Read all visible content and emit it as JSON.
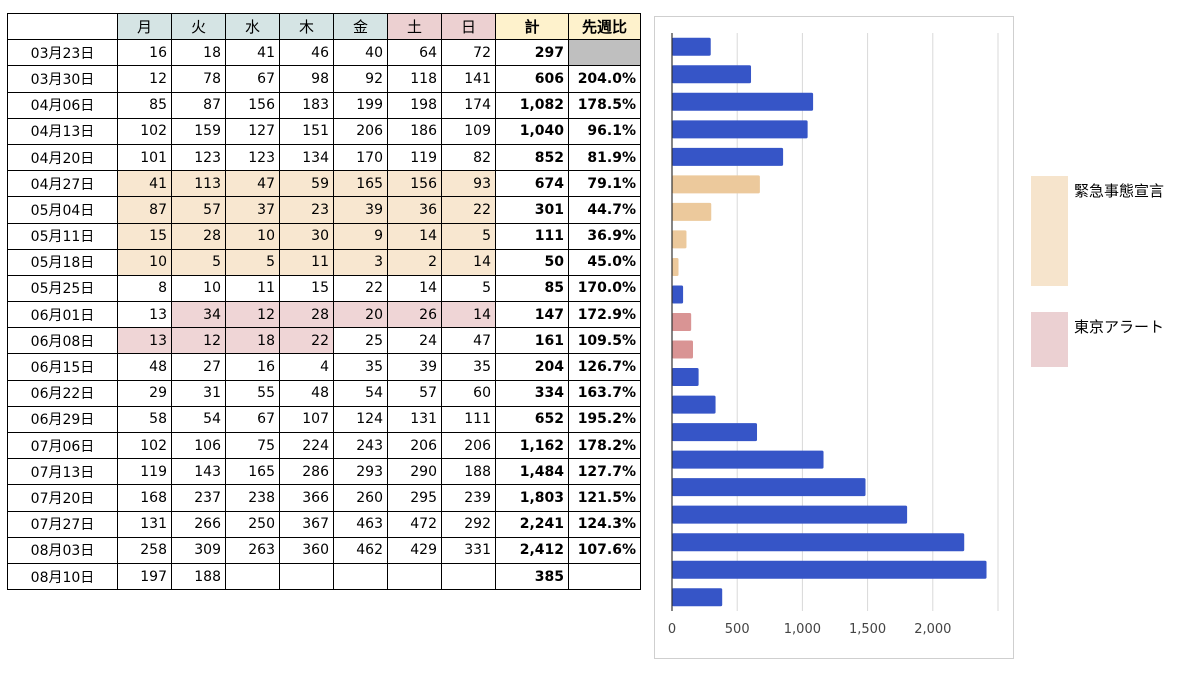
{
  "table": {
    "headers": {
      "date": "",
      "days": [
        "月",
        "火",
        "水",
        "木",
        "金",
        "土",
        "日"
      ],
      "total": "計",
      "ratio": "先週比"
    },
    "rows": [
      {
        "date": "03月23日",
        "days": [
          "16",
          "18",
          "41",
          "46",
          "40",
          "64",
          "72"
        ],
        "total": "297",
        "ratio": "",
        "highlight": [
          "",
          "",
          "",
          "",
          "",
          "",
          ""
        ],
        "ratio_na": true
      },
      {
        "date": "03月30日",
        "days": [
          "12",
          "78",
          "67",
          "98",
          "92",
          "118",
          "141"
        ],
        "total": "606",
        "ratio": "204.0%",
        "highlight": [
          "",
          "",
          "",
          "",
          "",
          "",
          ""
        ]
      },
      {
        "date": "04月06日",
        "days": [
          "85",
          "87",
          "156",
          "183",
          "199",
          "198",
          "174"
        ],
        "total": "1,082",
        "ratio": "178.5%",
        "highlight": [
          "",
          "",
          "",
          "",
          "",
          "",
          ""
        ]
      },
      {
        "date": "04月13日",
        "days": [
          "102",
          "159",
          "127",
          "151",
          "206",
          "186",
          "109"
        ],
        "total": "1,040",
        "ratio": "96.1%",
        "highlight": [
          "",
          "",
          "",
          "",
          "",
          "",
          ""
        ]
      },
      {
        "date": "04月20日",
        "days": [
          "101",
          "123",
          "123",
          "134",
          "170",
          "119",
          "82"
        ],
        "total": "852",
        "ratio": "81.9%",
        "highlight": [
          "",
          "",
          "",
          "",
          "",
          "",
          ""
        ]
      },
      {
        "date": "04月27日",
        "days": [
          "41",
          "113",
          "47",
          "59",
          "165",
          "156",
          "93"
        ],
        "total": "674",
        "ratio": "79.1%",
        "highlight": [
          "e",
          "e",
          "e",
          "e",
          "e",
          "e",
          "e"
        ]
      },
      {
        "date": "05月04日",
        "days": [
          "87",
          "57",
          "37",
          "23",
          "39",
          "36",
          "22"
        ],
        "total": "301",
        "ratio": "44.7%",
        "highlight": [
          "e",
          "e",
          "e",
          "e",
          "e",
          "e",
          "e"
        ]
      },
      {
        "date": "05月11日",
        "days": [
          "15",
          "28",
          "10",
          "30",
          "9",
          "14",
          "5"
        ],
        "total": "111",
        "ratio": "36.9%",
        "highlight": [
          "e",
          "e",
          "e",
          "e",
          "e",
          "e",
          "e"
        ]
      },
      {
        "date": "05月18日",
        "days": [
          "10",
          "5",
          "5",
          "11",
          "3",
          "2",
          "14"
        ],
        "total": "50",
        "ratio": "45.0%",
        "highlight": [
          "e",
          "e",
          "e",
          "e",
          "e",
          "e",
          "e"
        ]
      },
      {
        "date": "05月25日",
        "days": [
          "8",
          "10",
          "11",
          "15",
          "22",
          "14",
          "5"
        ],
        "total": "85",
        "ratio": "170.0%",
        "highlight": [
          "",
          "",
          "",
          "",
          "",
          "",
          ""
        ]
      },
      {
        "date": "06月01日",
        "days": [
          "13",
          "34",
          "12",
          "28",
          "20",
          "26",
          "14"
        ],
        "total": "147",
        "ratio": "172.9%",
        "highlight": [
          "",
          "a",
          "a",
          "a",
          "a",
          "a",
          "a"
        ]
      },
      {
        "date": "06月08日",
        "days": [
          "13",
          "12",
          "18",
          "22",
          "25",
          "24",
          "47"
        ],
        "total": "161",
        "ratio": "109.5%",
        "highlight": [
          "a",
          "a",
          "a",
          "a",
          "",
          "",
          ""
        ]
      },
      {
        "date": "06月15日",
        "days": [
          "48",
          "27",
          "16",
          "4",
          "35",
          "39",
          "35"
        ],
        "total": "204",
        "ratio": "126.7%",
        "highlight": [
          "",
          "",
          "",
          "",
          "",
          "",
          ""
        ]
      },
      {
        "date": "06月22日",
        "days": [
          "29",
          "31",
          "55",
          "48",
          "54",
          "57",
          "60"
        ],
        "total": "334",
        "ratio": "163.7%",
        "highlight": [
          "",
          "",
          "",
          "",
          "",
          "",
          ""
        ]
      },
      {
        "date": "06月29日",
        "days": [
          "58",
          "54",
          "67",
          "107",
          "124",
          "131",
          "111"
        ],
        "total": "652",
        "ratio": "195.2%",
        "highlight": [
          "",
          "",
          "",
          "",
          "",
          "",
          ""
        ]
      },
      {
        "date": "07月06日",
        "days": [
          "102",
          "106",
          "75",
          "224",
          "243",
          "206",
          "206"
        ],
        "total": "1,162",
        "ratio": "178.2%",
        "highlight": [
          "",
          "",
          "",
          "",
          "",
          "",
          ""
        ]
      },
      {
        "date": "07月13日",
        "days": [
          "119",
          "143",
          "165",
          "286",
          "293",
          "290",
          "188"
        ],
        "total": "1,484",
        "ratio": "127.7%",
        "highlight": [
          "",
          "",
          "",
          "",
          "",
          "",
          ""
        ]
      },
      {
        "date": "07月20日",
        "days": [
          "168",
          "237",
          "238",
          "366",
          "260",
          "295",
          "239"
        ],
        "total": "1,803",
        "ratio": "121.5%",
        "highlight": [
          "",
          "",
          "",
          "",
          "",
          "",
          ""
        ]
      },
      {
        "date": "07月27日",
        "days": [
          "131",
          "266",
          "250",
          "367",
          "463",
          "472",
          "292"
        ],
        "total": "2,241",
        "ratio": "124.3%",
        "highlight": [
          "",
          "",
          "",
          "",
          "",
          "",
          ""
        ]
      },
      {
        "date": "08月03日",
        "days": [
          "258",
          "309",
          "263",
          "360",
          "462",
          "429",
          "331"
        ],
        "total": "2,412",
        "ratio": "107.6%",
        "highlight": [
          "",
          "",
          "",
          "",
          "",
          "",
          ""
        ]
      },
      {
        "date": "08月10日",
        "days": [
          "197",
          "188",
          "",
          "",
          "",
          "",
          ""
        ],
        "total": "385",
        "ratio": "",
        "highlight": [
          "",
          "",
          "",
          "",
          "",
          "",
          ""
        ]
      }
    ]
  },
  "chart_data": {
    "type": "bar",
    "orientation": "horizontal",
    "categories": [
      "03月23日",
      "03月30日",
      "04月06日",
      "04月13日",
      "04月20日",
      "04月27日",
      "05月04日",
      "05月11日",
      "05月18日",
      "05月25日",
      "06月01日",
      "06月08日",
      "06月15日",
      "06月22日",
      "06月29日",
      "07月06日",
      "07月13日",
      "07月20日",
      "07月27日",
      "08月03日",
      "08月10日"
    ],
    "values": [
      297,
      606,
      1082,
      1040,
      852,
      674,
      301,
      111,
      50,
      85,
      147,
      161,
      204,
      334,
      652,
      1162,
      1484,
      1803,
      2241,
      2412,
      385
    ],
    "bar_groups": [
      "normal",
      "normal",
      "normal",
      "normal",
      "normal",
      "emergency",
      "emergency",
      "emergency",
      "emergency",
      "normal",
      "alert",
      "alert",
      "normal",
      "normal",
      "normal",
      "normal",
      "normal",
      "normal",
      "normal",
      "normal",
      "normal"
    ],
    "xlim": [
      0,
      2500
    ],
    "xticks": [
      0,
      500,
      1000,
      1500,
      2000
    ],
    "xtick_labels": [
      "0",
      "500",
      "1,000",
      "1,500",
      "2,000"
    ],
    "grid": true,
    "legend_position": "right",
    "colors": {
      "normal": "#3655c7",
      "emergency": "#ecc99c",
      "alert": "#d99494",
      "grid": "#d9d9d9"
    }
  },
  "legend": [
    {
      "label": "緊急事態宣言",
      "color": "#f6e4cc"
    },
    {
      "label": "東京アラート",
      "color": "#ebd0d2"
    }
  ]
}
